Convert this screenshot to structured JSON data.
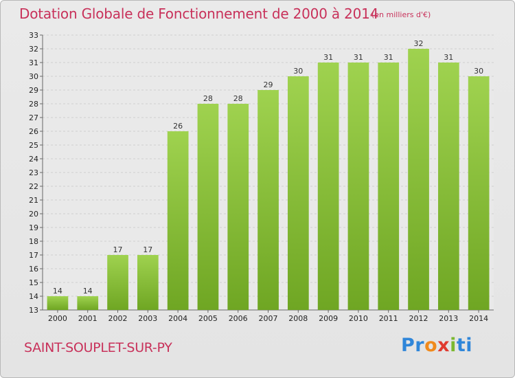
{
  "chart_data": {
    "type": "bar",
    "title": "Dotation Globale de Fonctionnement de 2000 à 2014",
    "subtitle": "(en milliers d'€)",
    "xlabel": "",
    "ylabel": "",
    "categories": [
      "2000",
      "2001",
      "2002",
      "2003",
      "2004",
      "2005",
      "2006",
      "2007",
      "2008",
      "2009",
      "2010",
      "2011",
      "2012",
      "2013",
      "2014"
    ],
    "values": [
      14,
      14,
      17,
      17,
      26,
      28,
      28,
      29,
      30,
      31,
      31,
      31,
      32,
      31,
      30
    ],
    "ylim": [
      13,
      33
    ],
    "yticks": [
      13,
      14,
      15,
      16,
      17,
      18,
      19,
      20,
      21,
      22,
      23,
      24,
      25,
      26,
      27,
      28,
      29,
      30,
      31,
      32,
      33
    ],
    "grid": true,
    "bar_color": "#8cc63f"
  },
  "footer": {
    "place_name": "SAINT-SOUPLET-SUR-PY"
  },
  "logo": {
    "text": "Proxiti",
    "colors": [
      "#2f86d9",
      "#f08a1c",
      "#e03a2f",
      "#7bb82f"
    ]
  }
}
